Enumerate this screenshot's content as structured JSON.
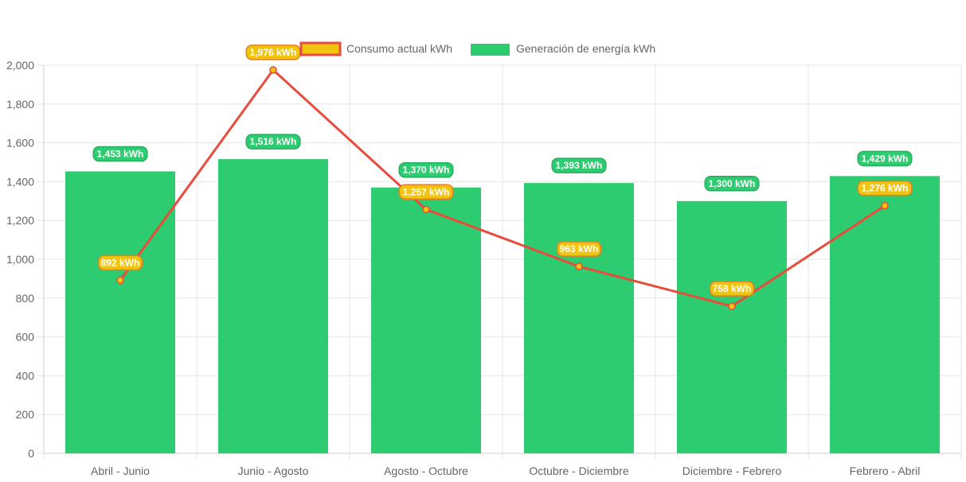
{
  "chart_data": {
    "type": "bar",
    "categories": [
      "Abril - Junio",
      "Junio - Agosto",
      "Agosto - Octubre",
      "Octubre - Diciembre",
      "Diciembre - Febrero",
      "Febrero - Abril"
    ],
    "series": [
      {
        "name": "Consumo actual kWh",
        "type": "line",
        "values": [
          892,
          1976,
          1257,
          963,
          758,
          1276
        ],
        "labels": [
          "892 kWh",
          "1,976 kWh",
          "1,257 kWh",
          "963 kWh",
          "758 kWh",
          "1,276 kWh"
        ],
        "line_color": "#e74c3c",
        "fill_color": "#f1c40f"
      },
      {
        "name": "Generación de energía kWh",
        "type": "bar",
        "values": [
          1453,
          1516,
          1370,
          1393,
          1300,
          1429
        ],
        "labels": [
          "1,453 kWh",
          "1,516 kWh",
          "1,370 kWh",
          "1,393 kWh",
          "1,300 kWh",
          "1,429 kWh"
        ],
        "color": "#2ecc71"
      }
    ],
    "ylim": [
      0,
      2000
    ],
    "yticks": [
      "0",
      "200",
      "400",
      "600",
      "800",
      "1,000",
      "1,200",
      "1,400",
      "1,600",
      "1,800",
      "2,000"
    ],
    "ytick_values": [
      0,
      200,
      400,
      600,
      800,
      1000,
      1200,
      1400,
      1600,
      1800,
      2000
    ],
    "legend_position": "top-center",
    "grid": true
  }
}
